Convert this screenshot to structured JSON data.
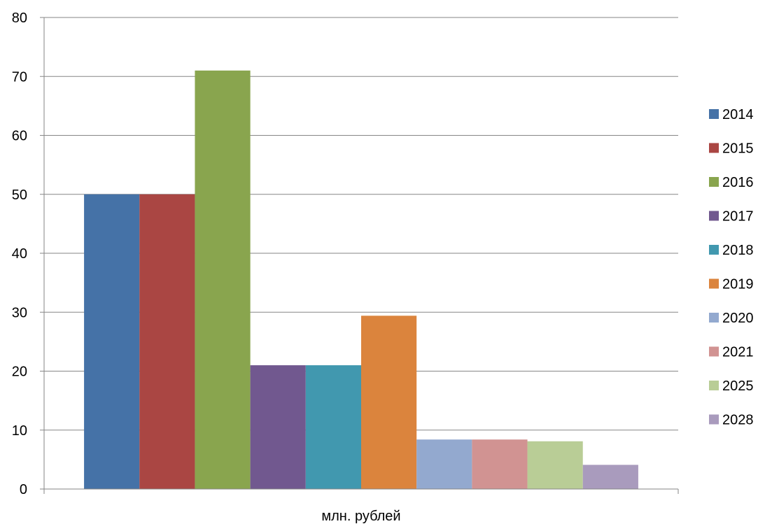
{
  "chart_data": {
    "type": "bar",
    "categories": [
      "млн. рублей"
    ],
    "series": [
      {
        "name": "2014",
        "values": [
          50
        ],
        "color": "#4572A7"
      },
      {
        "name": "2015",
        "values": [
          50
        ],
        "color": "#AA4643"
      },
      {
        "name": "2016",
        "values": [
          71
        ],
        "color": "#89A54E"
      },
      {
        "name": "2017",
        "values": [
          21
        ],
        "color": "#71588F"
      },
      {
        "name": "2018",
        "values": [
          21
        ],
        "color": "#4198AF"
      },
      {
        "name": "2019",
        "values": [
          29.4
        ],
        "color": "#DB843D"
      },
      {
        "name": "2020",
        "values": [
          8.4
        ],
        "color": "#93A9CF"
      },
      {
        "name": "2021",
        "values": [
          8.4
        ],
        "color": "#D19392"
      },
      {
        "name": "2025",
        "values": [
          8.1
        ],
        "color": "#B9CD96"
      },
      {
        "name": "2028",
        "values": [
          4.1
        ],
        "color": "#A99BBD"
      }
    ],
    "yticks": [
      "0",
      "10",
      "20",
      "30",
      "40",
      "50",
      "60",
      "70",
      "80"
    ],
    "ylim": [
      0,
      80
    ],
    "grid": true,
    "legend": "right",
    "title": "",
    "xlabel": "",
    "ylabel": ""
  }
}
